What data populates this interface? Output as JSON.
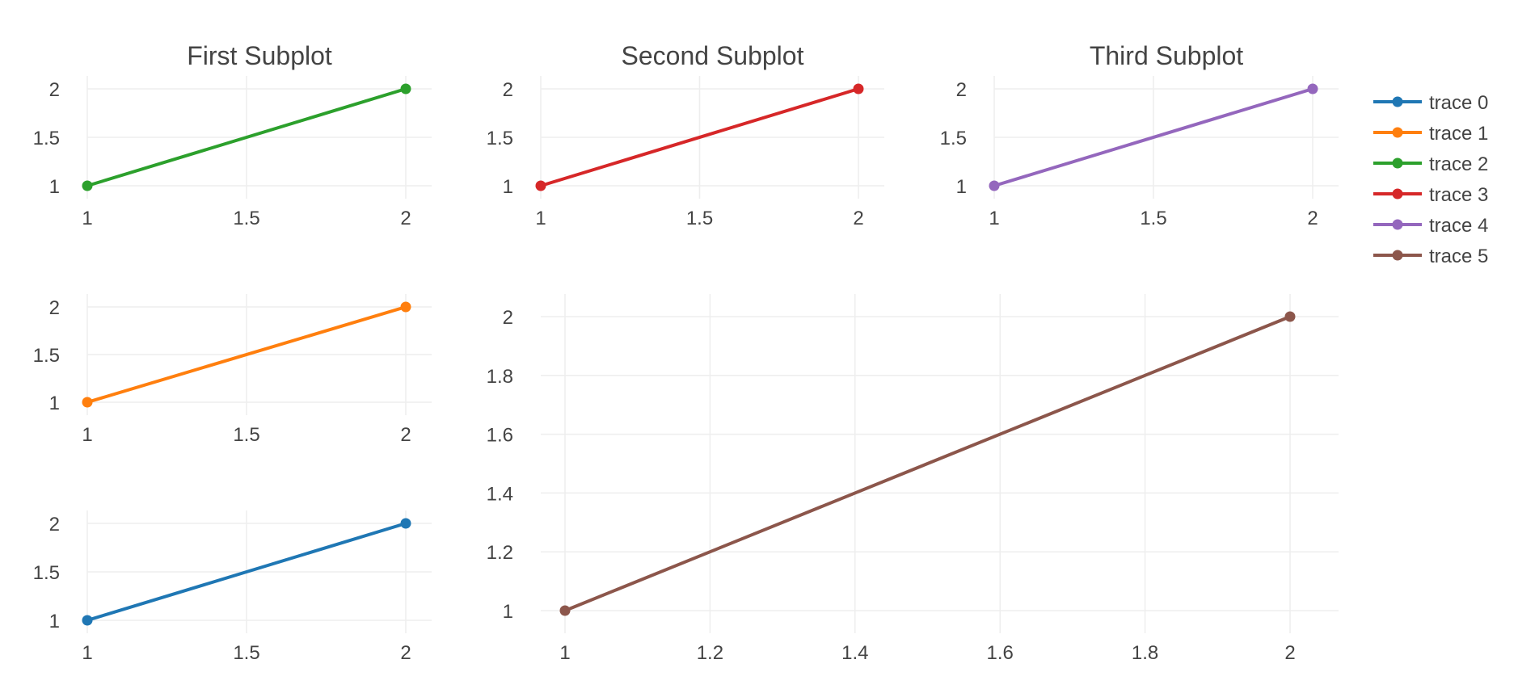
{
  "chart_data": [
    {
      "id": "first",
      "type": "line",
      "title": "First Subplot",
      "xlim": [
        1,
        2
      ],
      "ylim": [
        1,
        2
      ],
      "xticks": [
        1,
        1.5,
        2
      ],
      "yticks": [
        1,
        1.5,
        2
      ],
      "xtick_labels": [
        "1",
        "1.5",
        "2"
      ],
      "ytick_labels": [
        "1",
        "1.5",
        "2"
      ],
      "series": [
        {
          "name": "trace 2",
          "color": "#2ca02c",
          "x": [
            1,
            2
          ],
          "y": [
            1,
            2
          ]
        }
      ]
    },
    {
      "id": "second",
      "type": "line",
      "title": "Second Subplot",
      "xlim": [
        1,
        2
      ],
      "ylim": [
        1,
        2
      ],
      "xticks": [
        1,
        1.5,
        2
      ],
      "yticks": [
        1,
        1.5,
        2
      ],
      "xtick_labels": [
        "1",
        "1.5",
        "2"
      ],
      "ytick_labels": [
        "1",
        "1.5",
        "2"
      ],
      "series": [
        {
          "name": "trace 3",
          "color": "#d62728",
          "x": [
            1,
            2
          ],
          "y": [
            1,
            2
          ]
        }
      ]
    },
    {
      "id": "third",
      "type": "line",
      "title": "Third Subplot",
      "xlim": [
        1,
        2
      ],
      "ylim": [
        1,
        2
      ],
      "xticks": [
        1,
        1.5,
        2
      ],
      "yticks": [
        1,
        1.5,
        2
      ],
      "xtick_labels": [
        "1",
        "1.5",
        "2"
      ],
      "ytick_labels": [
        "1",
        "1.5",
        "2"
      ],
      "series": [
        {
          "name": "trace 4",
          "color": "#9467bd",
          "x": [
            1,
            2
          ],
          "y": [
            1,
            2
          ]
        }
      ]
    },
    {
      "id": "fourth",
      "type": "line",
      "title": "",
      "xlim": [
        1,
        2
      ],
      "ylim": [
        1,
        2
      ],
      "xticks": [
        1,
        1.5,
        2
      ],
      "yticks": [
        1,
        1.5,
        2
      ],
      "xtick_labels": [
        "1",
        "1.5",
        "2"
      ],
      "ytick_labels": [
        "1",
        "1.5",
        "2"
      ],
      "series": [
        {
          "name": "trace 1",
          "color": "#ff7f0e",
          "x": [
            1,
            2
          ],
          "y": [
            1,
            2
          ]
        }
      ]
    },
    {
      "id": "fifth",
      "type": "line",
      "title": "",
      "xlim": [
        1,
        2
      ],
      "ylim": [
        1,
        2
      ],
      "xticks": [
        1,
        1.5,
        2
      ],
      "yticks": [
        1,
        1.5,
        2
      ],
      "xtick_labels": [
        "1",
        "1.5",
        "2"
      ],
      "ytick_labels": [
        "1",
        "1.5",
        "2"
      ],
      "series": [
        {
          "name": "trace 0",
          "color": "#1f77b4",
          "x": [
            1,
            2
          ],
          "y": [
            1,
            2
          ]
        }
      ]
    },
    {
      "id": "sixth",
      "type": "line",
      "title": "",
      "xlim": [
        1,
        2
      ],
      "ylim": [
        1,
        2
      ],
      "xticks": [
        1,
        1.2,
        1.4,
        1.6,
        1.8,
        2
      ],
      "yticks": [
        1,
        1.2,
        1.4,
        1.6,
        1.8,
        2
      ],
      "xtick_labels": [
        "1",
        "1.2",
        "1.4",
        "1.6",
        "1.8",
        "2"
      ],
      "ytick_labels": [
        "1",
        "1.2",
        "1.4",
        "1.6",
        "1.8",
        "2"
      ],
      "series": [
        {
          "name": "trace 5",
          "color": "#8c564b",
          "x": [
            1,
            2
          ],
          "y": [
            1,
            2
          ]
        }
      ]
    }
  ],
  "legend": {
    "placement": "top-right",
    "items": [
      {
        "name": "trace 0",
        "color": "#1f77b4"
      },
      {
        "name": "trace 1",
        "color": "#ff7f0e"
      },
      {
        "name": "trace 2",
        "color": "#2ca02c"
      },
      {
        "name": "trace 3",
        "color": "#d62728"
      },
      {
        "name": "trace 4",
        "color": "#9467bd"
      },
      {
        "name": "trace 5",
        "color": "#8c564b"
      }
    ]
  }
}
